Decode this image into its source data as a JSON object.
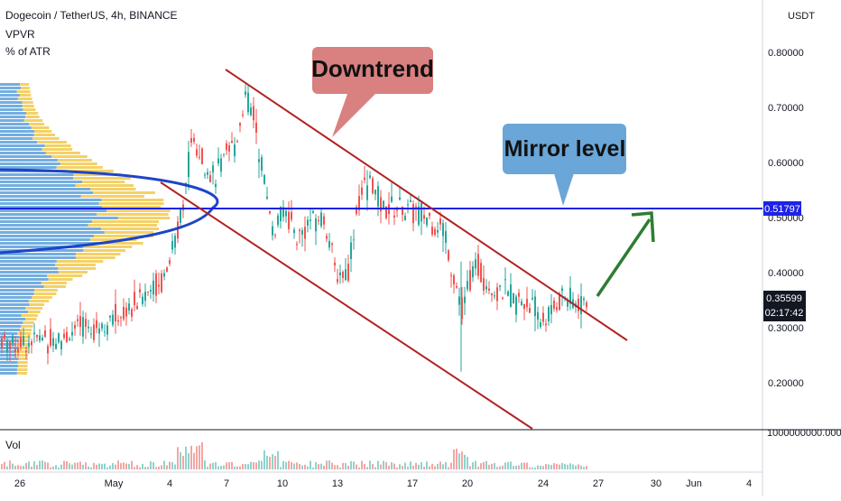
{
  "header": {
    "symbol_line": "Dogecoin / TetherUS, 4h, BINANCE",
    "indicator_1": "VPVR",
    "indicator_2": "% of ATR"
  },
  "price_axis": {
    "currency": "USDT",
    "tick_labels": [
      "0.80000",
      "0.70000",
      "0.60000",
      "0.50000",
      "0.40000",
      "0.30000",
      "0.20000"
    ],
    "mirror_level_label": "0.51797",
    "last_price_label": "0.35599",
    "countdown_label": "02:17:42",
    "volume_scale_label": "1000000000.0000"
  },
  "volume_pane": {
    "label": "Vol"
  },
  "time_axis": {
    "labels": [
      "26",
      "May",
      "4",
      "7",
      "10",
      "13",
      "17",
      "20",
      "24",
      "27",
      "30",
      "Jun",
      "4"
    ]
  },
  "annotations": {
    "downtrend": "Downtrend",
    "mirror": "Mirror level"
  },
  "colors": {
    "bull": "#26a69a",
    "bear": "#ef5350",
    "channel": "#b22222",
    "mirror_line": "#1e22e6",
    "arrow": "#2e7d32",
    "downtrend_callout": "#d98080",
    "mirror_callout": "#6aa6d8",
    "vpvr_blue": "#5aa0dc",
    "vpvr_yellow": "#f2c94c"
  },
  "chart_data": {
    "type": "candlestick",
    "symbol": "DOGEUSDT",
    "interval": "4h",
    "ylim": [
      0.15,
      0.85
    ],
    "x": [
      "Apr 26",
      "Apr 28",
      "May 1",
      "May 3",
      "May 4",
      "May 5",
      "May 6",
      "May 7",
      "May 8",
      "May 9",
      "May 10",
      "May 11",
      "May 12",
      "May 13",
      "May 14",
      "May 15",
      "May 16",
      "May 17",
      "May 18",
      "May 19",
      "May 20",
      "May 21",
      "May 22",
      "May 23",
      "May 24",
      "May 25",
      "May 26"
    ],
    "close": [
      0.27,
      0.29,
      0.33,
      0.38,
      0.53,
      0.63,
      0.57,
      0.62,
      0.71,
      0.58,
      0.48,
      0.46,
      0.5,
      0.4,
      0.52,
      0.55,
      0.51,
      0.51,
      0.48,
      0.33,
      0.4,
      0.36,
      0.35,
      0.33,
      0.31,
      0.34,
      0.356
    ],
    "last_price": 0.35599,
    "mirror_level": 0.51797,
    "channel_upper": {
      "start": [
        "May 7",
        0.75
      ],
      "end": [
        "May 26",
        0.31
      ]
    },
    "channel_lower": {
      "start": [
        "May 4",
        0.55
      ],
      "end": [
        "May 24",
        0.15
      ]
    },
    "projection_target": 0.51,
    "grid": false,
    "legend": "none"
  }
}
